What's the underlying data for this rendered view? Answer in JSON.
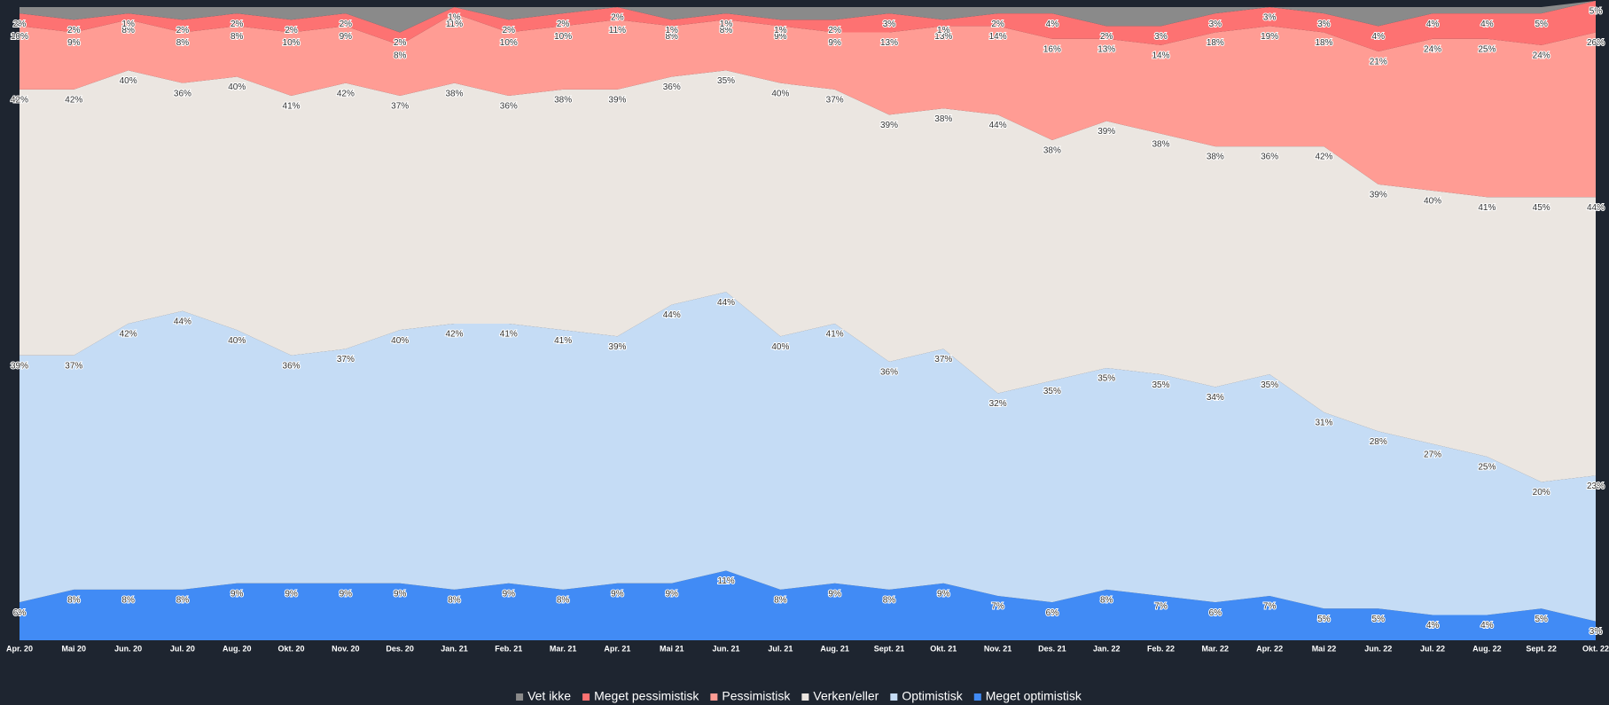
{
  "chart_data": {
    "type": "stacked_area",
    "categories": [
      "Apr. 20",
      "Mai 20",
      "Jun. 20",
      "Jul. 20",
      "Aug. 20",
      "Okt. 20",
      "Nov. 20",
      "Des. 20",
      "Jan. 21",
      "Feb. 21",
      "Mar. 21",
      "Apr. 21",
      "Mai 21",
      "Jun. 21",
      "Jul. 21",
      "Aug. 21",
      "Sept. 21",
      "Okt. 21",
      "Nov. 21",
      "Des. 21",
      "Jan. 22",
      "Feb. 22",
      "Mar. 22",
      "Apr. 22",
      "Mai 22",
      "Jun. 22",
      "Jul. 22",
      "Aug. 22",
      "Sept. 22",
      "Okt. 22"
    ],
    "ylim": [
      0,
      100
    ],
    "legend": "bottom",
    "series": [
      {
        "name": "Meget optimistisk",
        "color": "#418bf5",
        "values": [
          6,
          8,
          8,
          8,
          9,
          9,
          9,
          9,
          8,
          9,
          8,
          9,
          9,
          11,
          8,
          9,
          8,
          9,
          7,
          6,
          8,
          7,
          6,
          7,
          5,
          5,
          4,
          4,
          5,
          3
        ],
        "value_labels": [
          "6%",
          "8%",
          "8%",
          "8%",
          "9%",
          "9%",
          "9%",
          "9%",
          "8%",
          "9%",
          "8%",
          "9%",
          "9%",
          "11%",
          "8%",
          "9%",
          "8%",
          "9%",
          "7%",
          "6%",
          "8%",
          "7%",
          "6%",
          "7%",
          "5%",
          "5%",
          "4%",
          "4%",
          "5%",
          "3%"
        ]
      },
      {
        "name": "Optimistisk",
        "color": "#c5dcf5",
        "values": [
          39,
          37,
          42,
          44,
          40,
          36,
          37,
          40,
          42,
          41,
          41,
          39,
          44,
          44,
          40,
          41,
          36,
          37,
          32,
          35,
          35,
          35,
          34,
          35,
          31,
          28,
          27,
          25,
          20,
          23
        ],
        "value_labels": [
          "39%",
          "37%",
          "42%",
          "44%",
          "40%",
          "36%",
          "37%",
          "40%",
          "42%",
          "41%",
          "41%",
          "39%",
          "44%",
          "44%",
          "40%",
          "41%",
          "36%",
          "37%",
          "32%",
          "35%",
          "35%",
          "35%",
          "34%",
          "35%",
          "31%",
          "28%",
          "27%",
          "25%",
          "20%",
          "23%"
        ]
      },
      {
        "name": "Verken/eller",
        "color": "#ebe6e1",
        "values": [
          42,
          42,
          40,
          36,
          40,
          41,
          42,
          37,
          38,
          36,
          38,
          39,
          36,
          35,
          40,
          37,
          39,
          38,
          44,
          38,
          39,
          38,
          38,
          36,
          42,
          39,
          40,
          41,
          45,
          44
        ],
        "value_labels": [
          "42%",
          "42%",
          "40%",
          "36%",
          "40%",
          "41%",
          "42%",
          "37%",
          "38%",
          "36%",
          "38%",
          "39%",
          "36%",
          "35%",
          "40%",
          "37%",
          "39%",
          "38%",
          "44%",
          "38%",
          "39%",
          "38%",
          "38%",
          "36%",
          "42%",
          "39%",
          "40%",
          "41%",
          "45%",
          "44%"
        ]
      },
      {
        "name": "Pessimistisk",
        "color": "#ff9c94",
        "values": [
          10,
          9,
          8,
          8,
          8,
          10,
          9,
          8,
          11,
          10,
          10,
          11,
          8,
          8,
          9,
          9,
          13,
          13,
          14,
          16,
          13,
          14,
          18,
          19,
          18,
          21,
          24,
          25,
          24,
          26
        ],
        "value_labels": [
          "10%",
          "9%",
          "8%",
          "8%",
          "8%",
          "10%",
          "9%",
          "8%",
          "11%",
          "10%",
          "10%",
          "11%",
          "8%",
          "8%",
          "9%",
          "9%",
          "13%",
          "13%",
          "14%",
          "16%",
          "13%",
          "14%",
          "18%",
          "19%",
          "18%",
          "21%",
          "24%",
          "25%",
          "24%",
          "26%"
        ]
      },
      {
        "name": "Meget pessimistisk",
        "color": "#fd7272",
        "values": [
          2,
          2,
          1,
          2,
          2,
          2,
          2,
          2,
          1,
          2,
          2,
          2,
          1,
          1,
          1,
          2,
          3,
          1,
          2,
          4,
          2,
          3,
          3,
          3,
          3,
          4,
          4,
          4,
          5,
          5
        ],
        "value_labels": [
          "2%",
          "2%",
          "1%",
          "2%",
          "2%",
          "2%",
          "2%",
          "2%",
          "1%",
          "2%",
          "2%",
          "2%",
          "1%",
          "1%",
          "1%",
          "2%",
          "3%",
          "1%",
          "2%",
          "4%",
          "2%",
          "3%",
          "3%",
          "3%",
          "3%",
          "4%",
          "4%",
          "4%",
          "5%",
          "5%"
        ]
      },
      {
        "name": "Vet ikke",
        "color": "#8a8a8a",
        "values": [
          1,
          2,
          1,
          2,
          1,
          2,
          1,
          4,
          0,
          2,
          1,
          0,
          2,
          1,
          2,
          2,
          1,
          2,
          1,
          1,
          3,
          3,
          1,
          0,
          1,
          3,
          1,
          1,
          1,
          0
        ]
      }
    ]
  }
}
